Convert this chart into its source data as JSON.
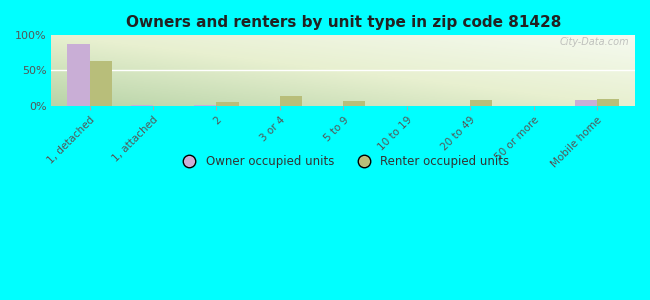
{
  "title": "Owners and renters by unit type in zip code 81428",
  "categories": [
    "1, detached",
    "1, attached",
    "2",
    "3 or 4",
    "5 to 9",
    "10 to 19",
    "20 to 49",
    "50 or more",
    "Mobile home"
  ],
  "owner_values": [
    88,
    1,
    1,
    0,
    0,
    0,
    0,
    0,
    8
  ],
  "renter_values": [
    63,
    0,
    5,
    14,
    7,
    0,
    8,
    0,
    10
  ],
  "owner_color": "#c9aed6",
  "renter_color": "#b8be7a",
  "background_color": "#00ffff",
  "ylim": [
    0,
    100
  ],
  "yticks": [
    0,
    50,
    100
  ],
  "ytick_labels": [
    "0%",
    "50%",
    "100%"
  ],
  "bar_width": 0.35,
  "legend_owner": "Owner occupied units",
  "legend_renter": "Renter occupied units",
  "watermark": "City-Data.com"
}
